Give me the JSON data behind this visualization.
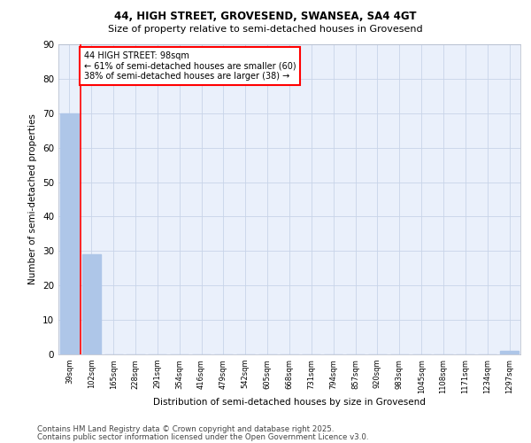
{
  "title1": "44, HIGH STREET, GROVESEND, SWANSEA, SA4 4GT",
  "title2": "Size of property relative to semi-detached houses in Grovesend",
  "xlabel": "Distribution of semi-detached houses by size in Grovesend",
  "ylabel": "Number of semi-detached properties",
  "categories": [
    "39sqm",
    "102sqm",
    "165sqm",
    "228sqm",
    "291sqm",
    "354sqm",
    "416sqm",
    "479sqm",
    "542sqm",
    "605sqm",
    "668sqm",
    "731sqm",
    "794sqm",
    "857sqm",
    "920sqm",
    "983sqm",
    "1045sqm",
    "1108sqm",
    "1171sqm",
    "1234sqm",
    "1297sqm"
  ],
  "values": [
    70,
    29,
    0,
    0,
    0,
    0,
    0,
    0,
    0,
    0,
    0,
    0,
    0,
    0,
    0,
    0,
    0,
    0,
    0,
    0,
    1
  ],
  "bar_color": "#aec6e8",
  "annotation_title": "44 HIGH STREET: 98sqm",
  "annotation_line1": "← 61% of semi-detached houses are smaller (60)",
  "annotation_line2": "38% of semi-detached houses are larger (38) →",
  "footer1": "Contains HM Land Registry data © Crown copyright and database right 2025.",
  "footer2": "Contains public sector information licensed under the Open Government Licence v3.0.",
  "ylim": [
    0,
    90
  ],
  "yticks": [
    0,
    10,
    20,
    30,
    40,
    50,
    60,
    70,
    80,
    90
  ],
  "plot_bg": "#eaf0fb",
  "grid_color": "#c8d4e8",
  "red_line_x": 0.5
}
